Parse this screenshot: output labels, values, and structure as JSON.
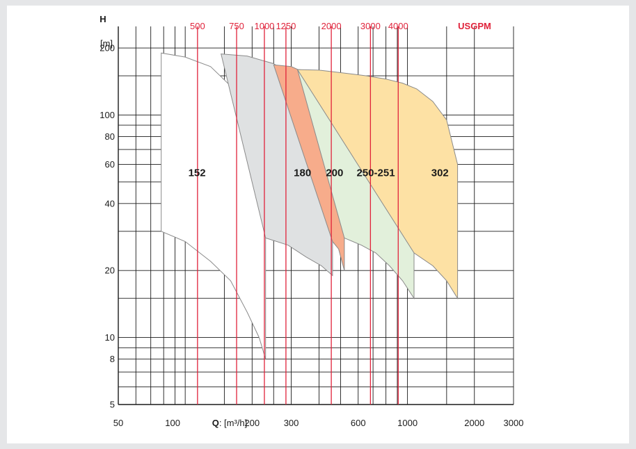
{
  "chart_data": {
    "type": "area",
    "title": "",
    "ylabel": "H",
    "yunit": "[m]",
    "xlabel_prefix": "Q",
    "xlabel_unit": ": [m³/h]",
    "top_axis_label": "USGPM",
    "x_scale": "log",
    "y_scale": "log",
    "xlim": [
      50,
      3000
    ],
    "ylim": [
      5,
      250
    ],
    "grid": true,
    "x_ticks": [
      {
        "value": 50,
        "label": "50"
      },
      {
        "value": 100,
        "label": "100"
      },
      {
        "value": 200,
        "label": "200"
      },
      {
        "value": 300,
        "label": "300"
      },
      {
        "value": 600,
        "label": "600"
      },
      {
        "value": 1000,
        "label": "1000"
      },
      {
        "value": 2000,
        "label": "2000"
      },
      {
        "value": 3000,
        "label": "3000"
      }
    ],
    "y_ticks": [
      {
        "value": 5,
        "label": "5"
      },
      {
        "value": 8,
        "label": "8"
      },
      {
        "value": 10,
        "label": "10"
      },
      {
        "value": 20,
        "label": "20"
      },
      {
        "value": 40,
        "label": "40"
      },
      {
        "value": 60,
        "label": "60"
      },
      {
        "value": 80,
        "label": "80"
      },
      {
        "value": 100,
        "label": "100"
      },
      {
        "value": 200,
        "label": "200"
      }
    ],
    "usgpm_lines": [
      {
        "value": 113.6,
        "label": "500"
      },
      {
        "value": 170.3,
        "label": "750"
      },
      {
        "value": 227.1,
        "label": "1000"
      },
      {
        "value": 283.9,
        "label": "1250"
      },
      {
        "value": 454.2,
        "label": "2000"
      },
      {
        "value": 681.4,
        "label": "3000"
      },
      {
        "value": 908.5,
        "label": "4000"
      }
    ],
    "series": [
      {
        "name": "152",
        "color": "#ffffff",
        "label_at": [
          113,
          55
        ],
        "top": [
          [
            78,
            190
          ],
          [
            100,
            182
          ],
          [
            130,
            165
          ],
          [
            160,
            135
          ],
          [
            190,
            110
          ],
          [
            230,
            83
          ]
        ],
        "right_edge_to": 8,
        "bottom": [
          [
            78,
            30
          ],
          [
            100,
            27
          ],
          [
            130,
            22
          ],
          [
            160,
            18
          ],
          [
            190,
            13
          ],
          [
            215,
            10
          ],
          [
            230,
            8
          ]
        ]
      },
      {
        "name": "180",
        "color": "#dfe1e2",
        "label_at": [
          337,
          55
        ],
        "top": [
          [
            145,
            188
          ],
          [
            190,
            184
          ],
          [
            250,
            170
          ],
          [
            320,
            145
          ],
          [
            380,
            118
          ],
          [
            430,
            98
          ],
          [
            460,
            75
          ]
        ],
        "right_edge_to": 19,
        "bottom": [
          [
            230,
            28
          ],
          [
            290,
            26
          ],
          [
            350,
            23
          ],
          [
            410,
            21
          ],
          [
            460,
            19
          ]
        ]
      },
      {
        "name": "200",
        "color": "#f7ac8b",
        "label_at": [
          470,
          55
        ],
        "top": [
          [
            250,
            168
          ],
          [
            300,
            165
          ],
          [
            360,
            152
          ],
          [
            420,
            130
          ],
          [
            470,
            100
          ],
          [
            520,
            80
          ]
        ],
        "right_edge_to": 20,
        "bottom": [
          [
            460,
            27
          ],
          [
            490,
            25
          ],
          [
            520,
            20
          ]
        ]
      },
      {
        "name": "250-251",
        "color": "#e2f0db",
        "label_at": [
          720,
          55
        ],
        "top": [
          [
            320,
            160
          ],
          [
            380,
            158
          ],
          [
            460,
            150
          ],
          [
            560,
            138
          ],
          [
            650,
            125
          ],
          [
            760,
            110
          ],
          [
            870,
            92
          ],
          [
            980,
            75
          ],
          [
            1070,
            50
          ]
        ],
        "right_edge_to": 15,
        "bottom": [
          [
            520,
            28
          ],
          [
            620,
            26
          ],
          [
            720,
            24
          ],
          [
            830,
            21
          ],
          [
            950,
            18
          ],
          [
            1070,
            15
          ]
        ]
      },
      {
        "name": "302",
        "color": "#fde1a4",
        "label_at": [
          1400,
          55
        ],
        "top": [
          [
            320,
            160
          ],
          [
            400,
            159
          ],
          [
            500,
            155
          ],
          [
            650,
            150
          ],
          [
            800,
            145
          ],
          [
            950,
            139
          ],
          [
            1100,
            131
          ],
          [
            1300,
            115
          ],
          [
            1500,
            95
          ],
          [
            1680,
            60
          ]
        ],
        "right_edge_to": 15,
        "bottom": [
          [
            1070,
            24
          ],
          [
            1300,
            21
          ],
          [
            1500,
            18
          ],
          [
            1680,
            15
          ]
        ]
      }
    ]
  }
}
